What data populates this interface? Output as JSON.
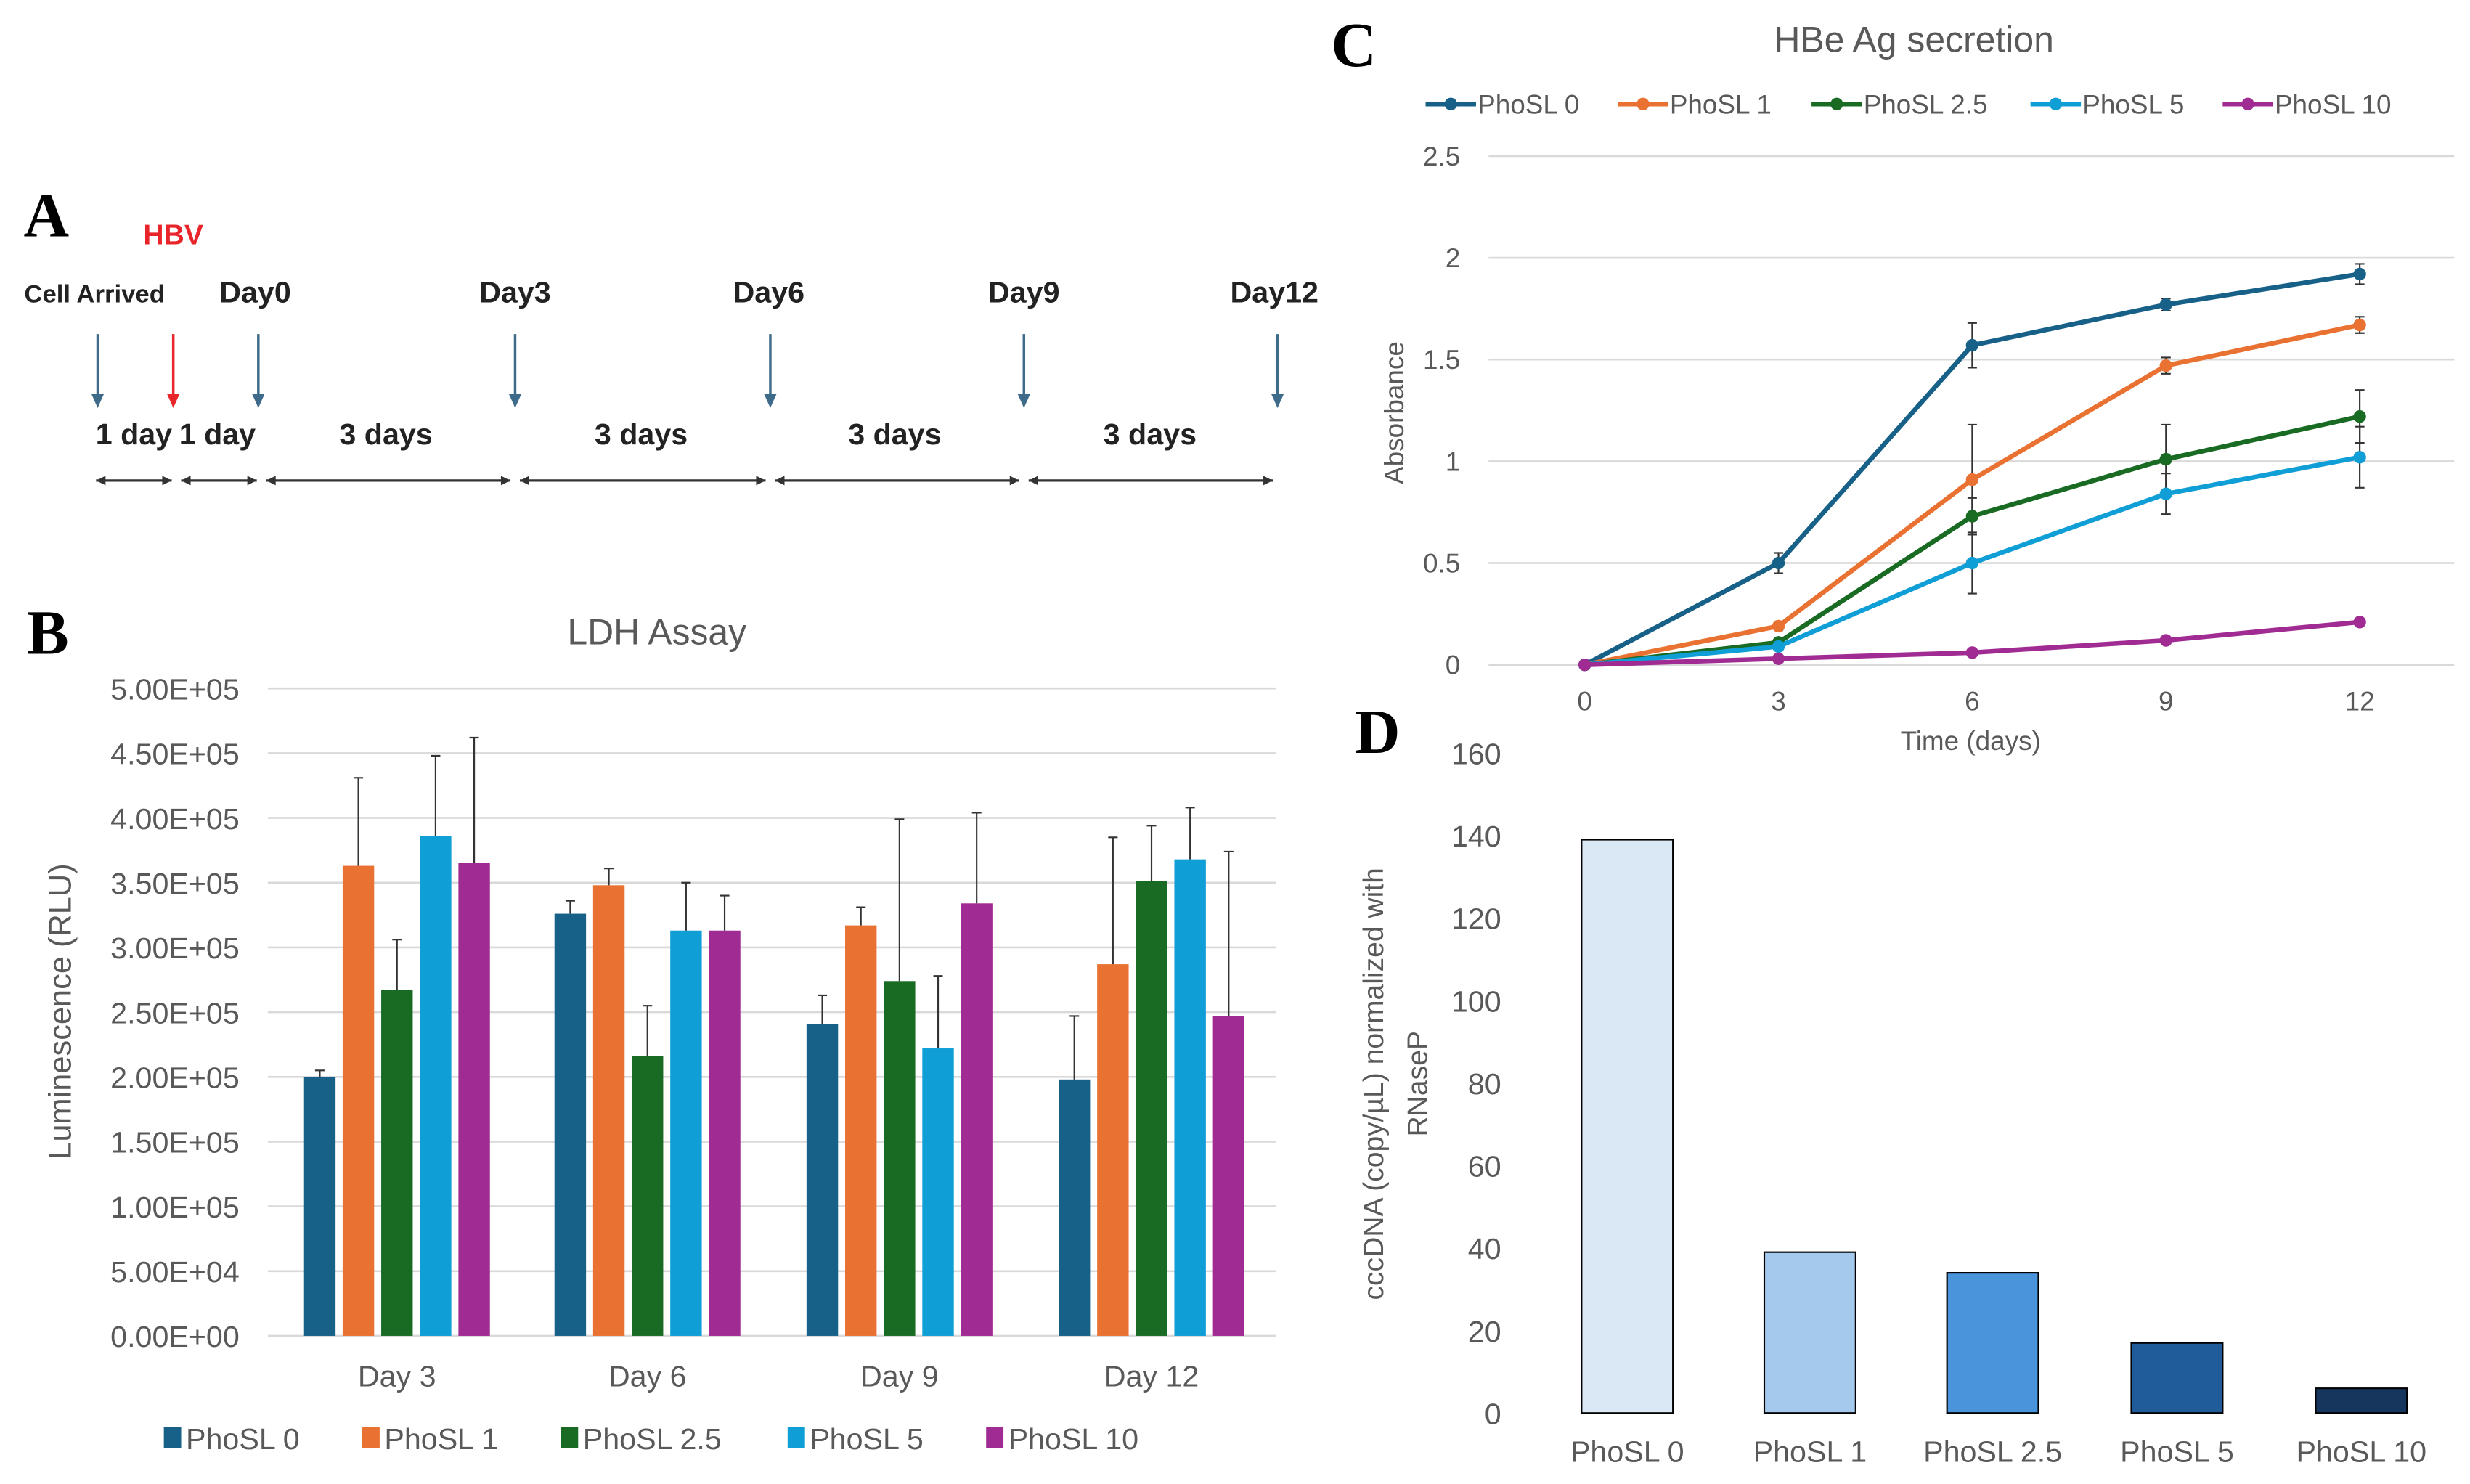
{
  "panels": {
    "a": "A",
    "b": "B",
    "c": "C",
    "d": "D"
  },
  "timeline": {
    "infection_label": "HBV",
    "events": [
      "Cell Arrived",
      "Day0",
      "Day3",
      "Day6",
      "Day9",
      "Day12"
    ],
    "durations": [
      "1 day",
      "1 day",
      "3 days",
      "3 days",
      "3 days",
      "3 days"
    ],
    "colors": {
      "arrow": "#3e6b8a",
      "infection": "#e8252a"
    }
  },
  "chart_data": [
    {
      "id": "ldh",
      "type": "bar",
      "title": "LDH Assay",
      "xlabel": "",
      "ylabel": "Luminescence (RLU)",
      "categories": [
        "Day 3",
        "Day 6",
        "Day 9",
        "Day 12"
      ],
      "ylim": [
        0,
        500000
      ],
      "yticks": [
        "0.00E+00",
        "5.00E+04",
        "1.00E+05",
        "1.50E+05",
        "2.00E+05",
        "2.50E+05",
        "3.00E+05",
        "3.50E+05",
        "4.00E+05",
        "4.50E+05",
        "5.00E+05"
      ],
      "grid": true,
      "legend": "bottom",
      "series": [
        {
          "name": "PhoSL 0",
          "color": "#176087",
          "values": [
            200000,
            326000,
            241000,
            198000
          ],
          "error": [
            5000,
            10000,
            22000,
            49000
          ]
        },
        {
          "name": "PhoSL 1",
          "color": "#e97132",
          "values": [
            363000,
            348000,
            317000,
            287000
          ],
          "error": [
            68000,
            13000,
            14000,
            98000
          ]
        },
        {
          "name": "PhoSL 2.5",
          "color": "#196b24",
          "values": [
            267000,
            216000,
            274000,
            351000
          ],
          "error": [
            39000,
            39000,
            125000,
            43000
          ]
        },
        {
          "name": "PhoSL 5",
          "color": "#0f9ed5",
          "values": [
            386000,
            313000,
            222000,
            368000
          ],
          "error": [
            62000,
            37000,
            56000,
            40000
          ]
        },
        {
          "name": "PhoSL 10",
          "color": "#a02b93",
          "values": [
            365000,
            313000,
            334000,
            247000
          ],
          "error": [
            97000,
            27000,
            70000,
            127000
          ]
        }
      ]
    },
    {
      "id": "hbeag",
      "type": "line",
      "title": "HBe Ag secretion",
      "xlabel": "Time (days)",
      "ylabel": "Absorbance",
      "x": [
        0,
        3,
        6,
        9,
        12
      ],
      "xticks": [
        "0",
        "3",
        "6",
        "9",
        "12"
      ],
      "ylim": [
        0,
        2.5
      ],
      "yticks": [
        "0",
        "0.5",
        "1",
        "1.5",
        "2",
        "2.5"
      ],
      "grid": true,
      "legend": "top",
      "series": [
        {
          "name": "PhoSL 0",
          "color": "#176087",
          "values": [
            0,
            0.5,
            1.57,
            1.77,
            1.92
          ],
          "error": [
            0,
            0.05,
            0.11,
            0.03,
            0.05
          ]
        },
        {
          "name": "PhoSL 1",
          "color": "#e97132",
          "values": [
            0,
            0.19,
            0.91,
            1.47,
            1.67
          ],
          "error": [
            0,
            0.02,
            0.27,
            0.04,
            0.04
          ]
        },
        {
          "name": "PhoSL 2.5",
          "color": "#196b24",
          "values": [
            0,
            0.11,
            0.73,
            1.01,
            1.22
          ],
          "error": [
            0,
            0.02,
            0.09,
            0.17,
            0.13
          ]
        },
        {
          "name": "PhoSL 5",
          "color": "#0f9ed5",
          "values": [
            0,
            0.09,
            0.5,
            0.84,
            1.02
          ],
          "error": [
            0,
            0.02,
            0.15,
            0.1,
            0.15
          ]
        },
        {
          "name": "PhoSL 10",
          "color": "#a02b93",
          "values": [
            0,
            0.03,
            0.06,
            0.12,
            0.21
          ],
          "error": [
            0,
            0.01,
            0.01,
            0.01,
            0.01
          ]
        }
      ]
    },
    {
      "id": "cccdna",
      "type": "bar",
      "title": "",
      "xlabel": "",
      "ylabel": [
        "cccDNA (copy/µL) normalized with",
        "RNaseP"
      ],
      "categories": [
        "PhoSL 0",
        "PhoSL 1",
        "PhoSL 2.5",
        "PhoSL 5",
        "PhoSL 10"
      ],
      "values": [
        139,
        39,
        34,
        17,
        6
      ],
      "colors": [
        "#dae8f6",
        "#a5c9ec",
        "#4a94db",
        "#1f5c99",
        "#17365d"
      ],
      "ylim": [
        0,
        160
      ],
      "yticks": [
        "0",
        "20",
        "40",
        "60",
        "80",
        "100",
        "120",
        "140",
        "160"
      ],
      "grid": false
    }
  ]
}
